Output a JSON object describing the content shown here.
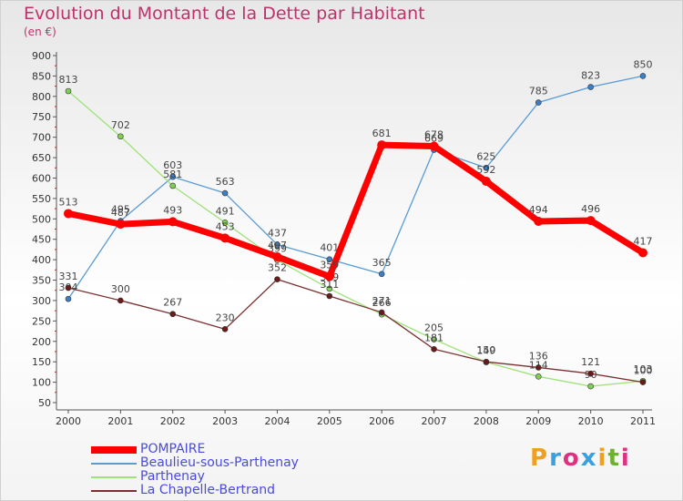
{
  "title": "Evolution du Montant de la Dette par Habitant",
  "subtitle": "(en €)",
  "brand": {
    "text": "Proxiti",
    "colors": [
      "#f0a020",
      "#3aa0e0",
      "#e03080",
      "#3aa0e0",
      "#f0a020",
      "#70b030",
      "#e03080"
    ]
  },
  "chart_data": {
    "type": "line",
    "title": "Evolution du Montant de la Dette par Habitant",
    "ylabel": "(en €)",
    "xlabel": "",
    "categories": [
      "2000",
      "2001",
      "2002",
      "2003",
      "2004",
      "2005",
      "2006",
      "2007",
      "2008",
      "2009",
      "2010",
      "2011"
    ],
    "ylim": [
      50,
      900
    ],
    "yticks": [
      50,
      100,
      150,
      200,
      250,
      300,
      350,
      400,
      450,
      500,
      550,
      600,
      650,
      700,
      750,
      800,
      850,
      900
    ],
    "grid": false,
    "legend_position": "bottom-left",
    "series": [
      {
        "name": "Beaulieu-sous-Parthenay",
        "color": "#5a9bd4",
        "width": 1.3,
        "marker": "#3a80c8",
        "values": [
          304,
          495,
          603,
          563,
          437,
          401,
          365,
          669,
          625,
          785,
          823,
          850
        ]
      },
      {
        "name": "Parthenay",
        "color": "#9ee27a",
        "width": 1.3,
        "marker": "#7fd050",
        "values": [
          813,
          702,
          581,
          491,
          399,
          329,
          266,
          205,
          149,
          114,
          90,
          103
        ]
      },
      {
        "name": "La Chapelle-Bertrand",
        "color": "#7a3030",
        "width": 1.3,
        "marker": "#6b1a1a",
        "values": [
          331,
          300,
          267,
          230,
          352,
          311,
          271,
          181,
          150,
          136,
          121,
          100
        ]
      },
      {
        "name": "POMPAIRE",
        "color": "#ff0000",
        "width": 7,
        "marker": "#ff0000",
        "values": [
          513,
          487,
          493,
          453,
          407,
          359,
          681,
          678,
          592,
          494,
          496,
          417
        ]
      }
    ],
    "legend_order": [
      "POMPAIRE",
      "Beaulieu-sous-Parthenay",
      "Parthenay",
      "La Chapelle-Bertrand"
    ]
  }
}
